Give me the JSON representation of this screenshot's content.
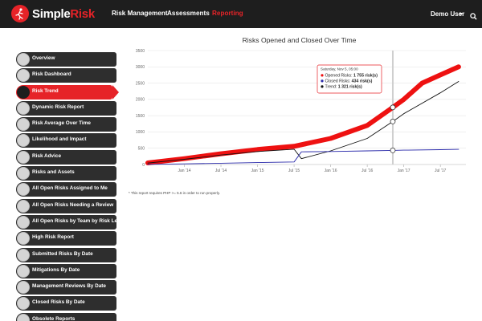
{
  "app": {
    "logo_part1": "Simple",
    "logo_part2": "Risk",
    "nav": [
      {
        "label": "Risk Management"
      },
      {
        "label": "Assessments"
      },
      {
        "label": "Reporting"
      }
    ],
    "user": "Demo User"
  },
  "sidebar": {
    "items": [
      {
        "label": "Overview"
      },
      {
        "label": "Risk Dashboard"
      },
      {
        "label": "Risk Trend"
      },
      {
        "label": "Dynamic Risk Report"
      },
      {
        "label": "Risk Average Over Time"
      },
      {
        "label": "Likelihood and Impact"
      },
      {
        "label": "Risk Advice"
      },
      {
        "label": "Risks and Assets"
      },
      {
        "label": "All Open Risks Assigned to Me"
      },
      {
        "label": "All Open Risks Needing a Review"
      },
      {
        "label": "All Open Risks by Team by Risk Level"
      },
      {
        "label": "High Risk Report"
      },
      {
        "label": "Submitted Risks By Date"
      },
      {
        "label": "Mitigations By Date"
      },
      {
        "label": "Management Reviews By Date"
      },
      {
        "label": "Closed Risks By Date"
      },
      {
        "label": "Obsolete Reports"
      }
    ]
  },
  "note": "* This report requires PHP >= 5.6 in order to run properly.",
  "chart_data": {
    "type": "line",
    "title": "Risks Opened and Closed Over Time",
    "ylim": [
      0,
      3500
    ],
    "yticks": [
      0,
      500,
      1000,
      1500,
      2000,
      2500,
      3000,
      3500
    ],
    "xticks": [
      "Jan '14",
      "Jul '14",
      "Jan '15",
      "Jul '15",
      "Jan '16",
      "Jul '16",
      "Jan '17",
      "Jul '17"
    ],
    "grid": true,
    "colors": {
      "opened": "#ee1111",
      "closed": "#2a2aaa",
      "trend": "#111111"
    },
    "series": [
      {
        "key": "opened",
        "x": [
          2013.5,
          2014.0,
          2014.5,
          2015.0,
          2015.5,
          2016.0,
          2016.5,
          2016.85,
          2017.0,
          2017.25,
          2017.5,
          2017.75
        ],
        "values": [
          50,
          180,
          330,
          460,
          560,
          800,
          1200,
          1755,
          2000,
          2500,
          2750,
          3000
        ]
      },
      {
        "key": "closed",
        "x": [
          2013.5,
          2014.0,
          2014.5,
          2015.0,
          2015.5,
          2015.6,
          2016.0,
          2016.5,
          2016.85,
          2017.0,
          2017.5,
          2017.75
        ],
        "values": [
          5,
          20,
          40,
          60,
          80,
          390,
          400,
          420,
          434,
          440,
          455,
          465
        ]
      },
      {
        "key": "trend",
        "x": [
          2013.5,
          2014.0,
          2014.5,
          2015.0,
          2015.5,
          2015.6,
          2016.0,
          2016.5,
          2016.85,
          2017.0,
          2017.5,
          2017.75
        ],
        "values": [
          45,
          160,
          290,
          400,
          470,
          180,
          420,
          800,
          1321,
          1560,
          2200,
          2550
        ]
      }
    ],
    "tooltip": {
      "date": "Saturday, Nov 5, 05:00",
      "x": 2016.85,
      "rows": [
        {
          "key": "opened",
          "name": "Opened Risks",
          "value": "1 755 risk(s)"
        },
        {
          "key": "closed",
          "name": "Closed Risks",
          "value": "434 risk(s)"
        },
        {
          "key": "trend",
          "name": "Trend",
          "value": "1 321 risk(s)"
        }
      ]
    }
  }
}
